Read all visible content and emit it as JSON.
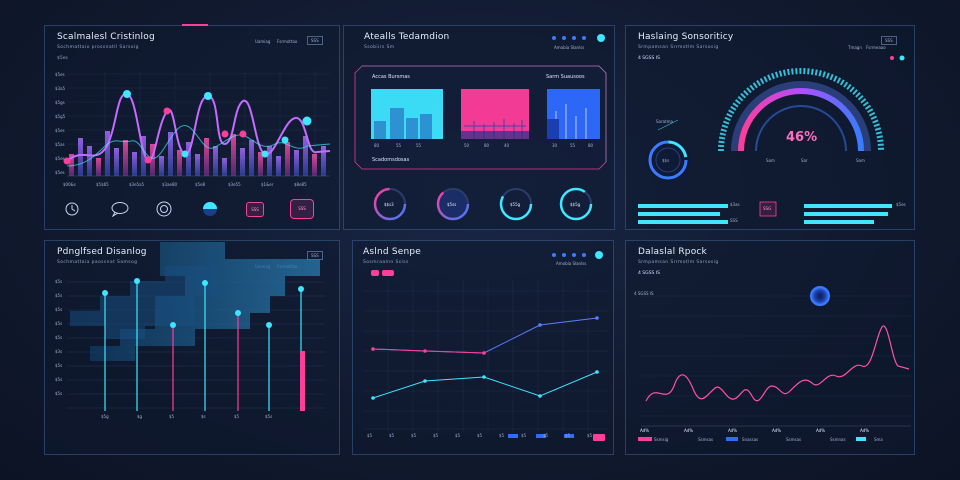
{
  "colors": {
    "background": "#111a30",
    "cyan": "#3fe6ff",
    "pink": "#ff3d9a",
    "blue": "#3a7bff",
    "panel_border": "#5a8cd2"
  },
  "panels": {
    "p1": {
      "title": "Scalmalesl Cristinlog",
      "subtitle": "Sochmattaio prossnatll  Sarsoig",
      "sub2": "$5es",
      "tag": "Uamiag",
      "tag2": "Fsrmottoo",
      "box": "SSS",
      "ylabels": [
        "$5es",
        "$3a5",
        "$5gs",
        "$5g5",
        "$5es",
        "$5as",
        "$5es",
        "$5es"
      ],
      "xlabels": [
        "$00&s",
        "$5$65",
        "$3e5a5",
        "$3ae80",
        "$5e8",
        "$3e55",
        "$1&er",
        "$8e85"
      ],
      "icons": [
        "refresh-icon",
        "chat-icon",
        "target-icon",
        "half-circle-icon",
        "record-icon",
        "shield-icon"
      ],
      "icon_box_1": "SSS",
      "icon_box_2": "SSS"
    },
    "p2": {
      "title": "Atealls Tedamdion",
      "subtitle": "Ssobiirs  Sm",
      "tag": "Amobia Slanlss",
      "inner_title_1": "Accas Bursmas",
      "inner_title_2": "Sarm Suausoos",
      "inner_footer": "Scadomsdosas",
      "bar_labels": [
        "80",
        "55",
        "55",
        "50",
        "80",
        "40",
        "30",
        "55",
        "80"
      ],
      "gauges": [
        "$$s3",
        "$5ss",
        "$55g",
        "$$5g"
      ]
    },
    "p3": {
      "title": "Haslaing Sonsoriticy",
      "subtitle": "Srmpamsan Srrmotlm   Sarsosig",
      "sub2": "4 SGSS IS",
      "tag": "Tmagn",
      "tag2": "Fsrmeaao",
      "box": "SSS",
      "gauge_value": "46%",
      "small_gauge": "$$s",
      "side_label": "Saratma",
      "ticks": [
        "Sam",
        "Sar",
        "Sam"
      ],
      "bar_labels": [
        "$3as",
        "SSS",
        "$5es"
      ],
      "mid_box": "SSG"
    },
    "p4": {
      "title": "Pdnglfsed Disanlog",
      "subtitle": "Sochmattaia paossnat  Samsog",
      "tag": "Uamiag",
      "tag2": "Fsrmottoo",
      "box": "SSS",
      "ylabels": [
        "$5s",
        "$5s",
        "$5s",
        "$5s",
        "$5s",
        "$3s",
        "$5s",
        "$5s",
        "$5s"
      ],
      "xlabels": [
        "$5g",
        "$g",
        "$5",
        "$s",
        "$5",
        "$5s"
      ]
    },
    "p5": {
      "title": "Aslnd Senpe",
      "subtitle": "Sosmraalnn  Ssiss",
      "tag": "Amobia Slanlss",
      "legend": [
        "Sm",
        "Ss"
      ],
      "x_labels": [
        "$5",
        "$5",
        "$5",
        "$5",
        "$5",
        "$5",
        "$5",
        "$5",
        "$5",
        "$5",
        "$5"
      ]
    },
    "p6": {
      "title": "Dalaslal Rpock",
      "subtitle": "Srmpamsan Srrmotlm  Sarsosig",
      "sub2": "4 SGSS IS",
      "legend": [
        {
          "value": "Ad%",
          "label": "Ssmsig"
        },
        {
          "value": "Ad%",
          "label": "Ssmsas"
        },
        {
          "value": "Ad%",
          "label": "Snassas"
        },
        {
          "value": "Ad%",
          "label": "Ssmsas"
        },
        {
          "value": "Ad%",
          "label": "Ssmnas"
        },
        {
          "value": "Ad%",
          "label": "Sma"
        }
      ]
    }
  }
}
